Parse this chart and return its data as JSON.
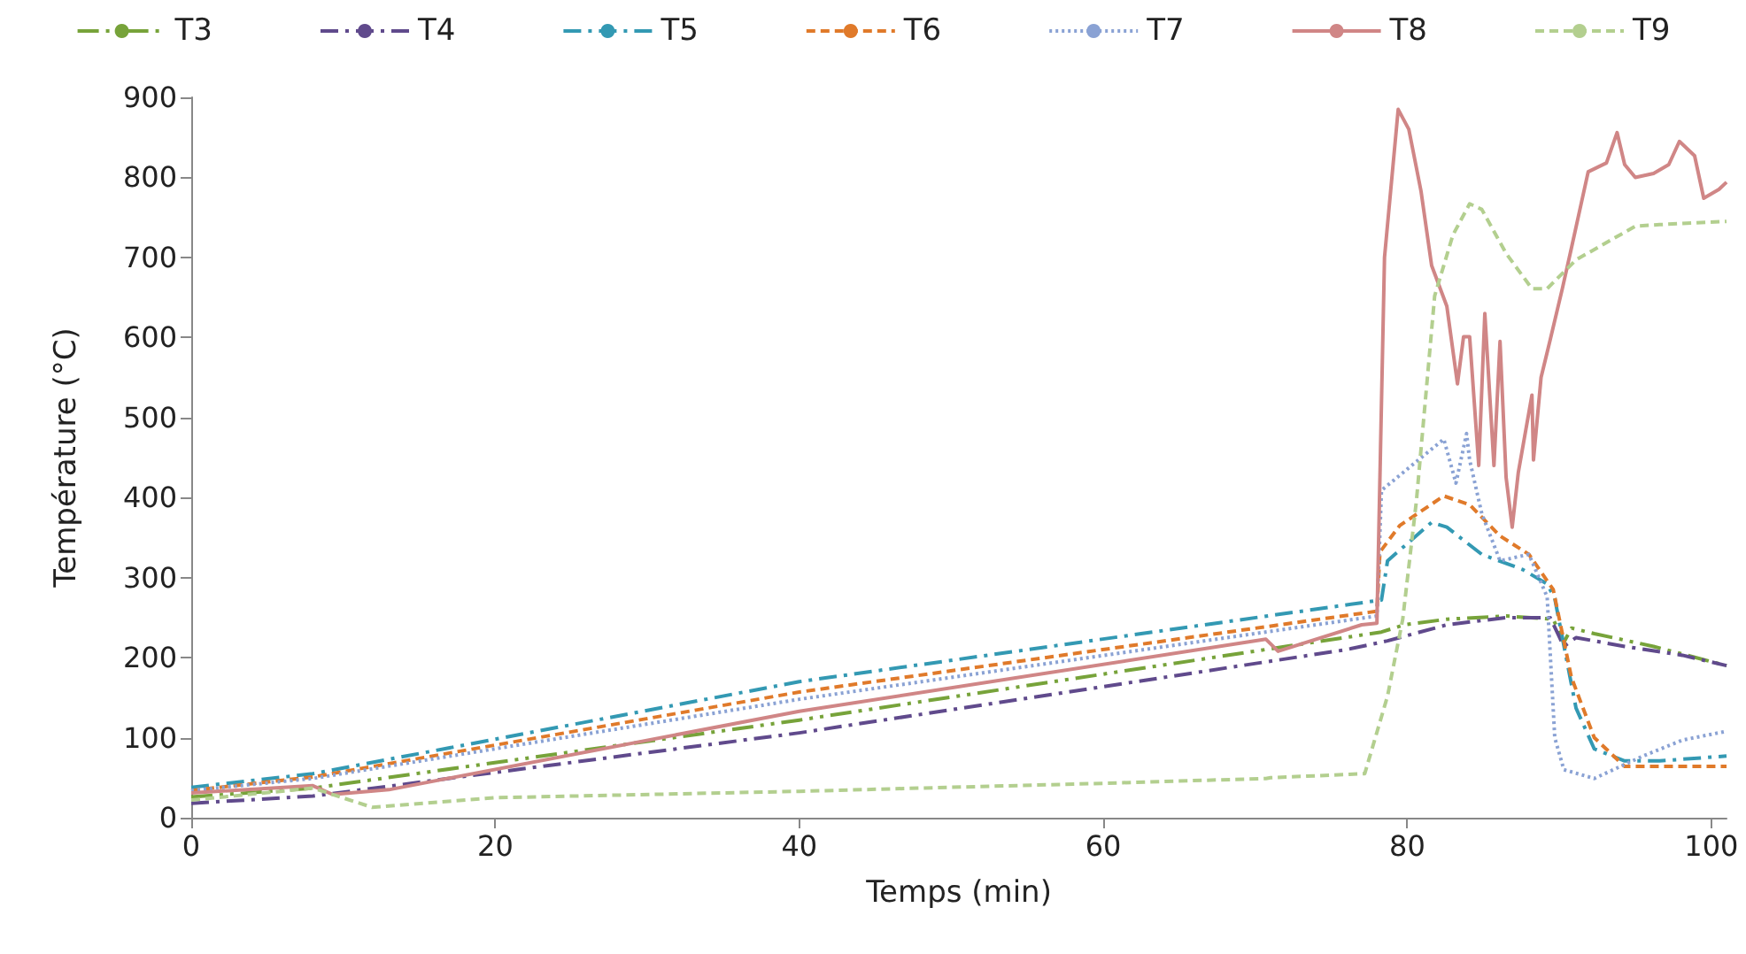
{
  "chart_data": {
    "type": "line",
    "xlabel": "Temps (min)",
    "ylabel": "Température (°C)",
    "xlim": [
      0,
      101
    ],
    "xticks": [
      0,
      20,
      40,
      60,
      80,
      100
    ],
    "ylim": [
      0,
      900
    ],
    "yticks": [
      0,
      100,
      200,
      300,
      400,
      500,
      600,
      700,
      800,
      900
    ],
    "grid": false,
    "legend": "top",
    "marker": "none",
    "series": [
      {
        "name": "T3",
        "color": "#77a33a",
        "line_style": "dashdotdot",
        "x": [
          0,
          8,
          40,
          78.3,
          79.8,
          82.6,
          86.5,
          89.6,
          90.3,
          90.8,
          92.3,
          96.2,
          101
        ],
        "values": [
          26,
          37,
          122,
          232,
          241,
          248,
          252,
          248,
          219,
          237,
          230,
          214,
          190
        ]
      },
      {
        "name": "T4",
        "color": "#604a8c",
        "line_style": "dashdot",
        "x": [
          0,
          8,
          40,
          76,
          78.7,
          82.6,
          86.5,
          89.4,
          90.3,
          91.1,
          94.3,
          98.1,
          101
        ],
        "values": [
          18,
          27,
          106,
          210,
          221,
          241,
          250,
          250,
          214,
          225,
          214,
          203,
          190
        ]
      },
      {
        "name": "T5",
        "color": "#3399b3",
        "line_style": "dashdot",
        "x": [
          0,
          8,
          40,
          78.3,
          78.7,
          81.6,
          82.6,
          84.9,
          87.6,
          89.2,
          89.7,
          91.1,
          92.3,
          94.3,
          96.6,
          101
        ],
        "values": [
          38,
          55,
          170,
          272,
          321,
          369,
          363,
          329,
          310,
          292,
          274,
          137,
          86,
          71,
          71,
          77
        ]
      },
      {
        "name": "T6",
        "color": "#e07a2a",
        "line_style": "dashed",
        "x": [
          0,
          8,
          40,
          78,
          78.2,
          79.5,
          82.4,
          84.1,
          86.1,
          88,
          89.6,
          90.8,
          92.3,
          94.3,
          98.1,
          101
        ],
        "values": [
          34,
          51,
          157,
          258,
          332,
          365,
          402,
          391,
          352,
          329,
          285,
          175,
          100,
          64,
          64,
          64
        ]
      },
      {
        "name": "T7",
        "color": "#8aa2d4",
        "line_style": "dotted",
        "x": [
          0,
          8,
          40,
          78,
          78.3,
          82.4,
          83.2,
          83.9,
          84.1,
          84.9,
          86.1,
          88,
          89.2,
          89.7,
          90.3,
          92.3,
          95.5,
          98.1,
          101
        ],
        "values": [
          34,
          49,
          148,
          252,
          409,
          473,
          418,
          480,
          447,
          380,
          321,
          329,
          276,
          100,
          60,
          49,
          77,
          97,
          108
        ]
      },
      {
        "name": "T8",
        "color": "#d08686",
        "line_style": "solid",
        "x": [
          0,
          8,
          9.3,
          13,
          40,
          70.7,
          71.5,
          77,
          78,
          78.5,
          79.4,
          80.1,
          80.9,
          81.6,
          82.6,
          83.3,
          83.7,
          84.1,
          84.7,
          85.1,
          85.7,
          86.1,
          86.5,
          86.9,
          87.3,
          88.2,
          88.3,
          88.8,
          89.4,
          90.2,
          90.8,
          91.9,
          93.1,
          93.8,
          94.3,
          95,
          96.2,
          97.2,
          97.9,
          98.9,
          99.5,
          100.5,
          101
        ],
        "values": [
          31,
          40,
          29,
          35,
          133,
          223,
          208,
          241,
          243,
          700,
          885,
          860,
          783,
          690,
          639,
          542,
          601,
          601,
          440,
          630,
          440,
          595,
          425,
          363,
          431,
          528,
          447,
          550,
          597,
          661,
          712,
          807,
          818,
          856,
          816,
          800,
          805,
          816,
          845,
          827,
          774,
          785,
          794
        ]
      },
      {
        "name": "T9",
        "color": "#b3cf8f",
        "line_style": "dashed",
        "x": [
          0,
          8,
          11.9,
          20,
          40,
          60,
          70.7,
          71,
          77.2,
          78.7,
          79.7,
          80.6,
          81.8,
          83,
          84.1,
          84.9,
          86.5,
          88.2,
          89.2,
          91.1,
          95,
          96.6,
          101
        ],
        "values": [
          22,
          37,
          13,
          25,
          33,
          43,
          49,
          50,
          55,
          152,
          248,
          396,
          652,
          728,
          767,
          760,
          705,
          661,
          661,
          697,
          739,
          741,
          745
        ]
      }
    ]
  }
}
